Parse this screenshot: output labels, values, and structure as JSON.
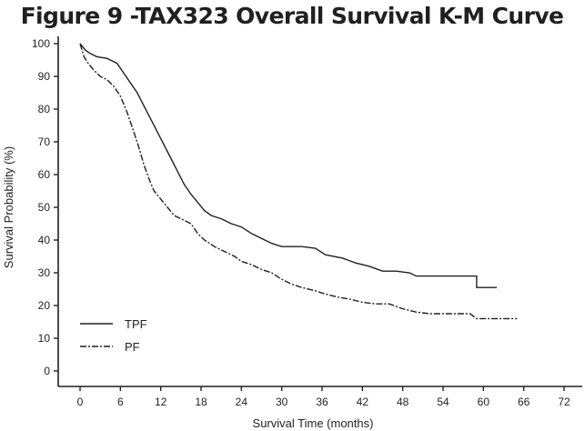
{
  "chart_data": {
    "type": "line",
    "title": "Figure 9 -TAX323 Overall Survival K-M Curve",
    "xlabel": "Survival Time (months)",
    "ylabel": "Survival Probability (%)",
    "xlim": [
      0,
      72
    ],
    "ylim": [
      0,
      100
    ],
    "xticks": [
      0,
      6,
      12,
      18,
      24,
      30,
      36,
      42,
      48,
      54,
      60,
      66,
      72
    ],
    "yticks": [
      0,
      10,
      20,
      30,
      40,
      50,
      60,
      70,
      80,
      90,
      100
    ],
    "grid": false,
    "legend_position": "bottom-left",
    "series": [
      {
        "name": "TPF",
        "line_style": "solid",
        "points": [
          [
            0,
            100
          ],
          [
            0.8,
            98
          ],
          [
            1.5,
            97
          ],
          [
            2.5,
            96
          ],
          [
            4,
            95.5
          ],
          [
            5.5,
            94
          ],
          [
            6.5,
            91
          ],
          [
            7.5,
            88
          ],
          [
            8.5,
            85
          ],
          [
            9.5,
            81
          ],
          [
            10.5,
            77
          ],
          [
            11.5,
            73
          ],
          [
            12.5,
            69
          ],
          [
            13.5,
            65
          ],
          [
            14.5,
            61
          ],
          [
            15.5,
            57
          ],
          [
            16.5,
            54
          ],
          [
            17.5,
            51.5
          ],
          [
            18.5,
            49
          ],
          [
            19.5,
            47.5
          ],
          [
            21,
            46.5
          ],
          [
            22.5,
            45
          ],
          [
            24,
            44
          ],
          [
            25.5,
            42
          ],
          [
            27,
            40.5
          ],
          [
            28.5,
            39
          ],
          [
            30,
            38
          ],
          [
            33,
            38
          ],
          [
            35,
            37.5
          ],
          [
            36.5,
            35.5
          ],
          [
            39,
            34.5
          ],
          [
            41,
            33
          ],
          [
            43,
            32
          ],
          [
            45,
            30.5
          ],
          [
            47,
            30.5
          ],
          [
            49,
            30
          ],
          [
            50,
            29
          ],
          [
            54,
            29
          ],
          [
            57,
            29
          ],
          [
            59,
            29
          ],
          [
            59,
            25.5
          ],
          [
            62,
            25.5
          ]
        ]
      },
      {
        "name": "PF",
        "line_style": "dash-dot",
        "points": [
          [
            0,
            100
          ],
          [
            0.6,
            96
          ],
          [
            1.2,
            94
          ],
          [
            2,
            92
          ],
          [
            3,
            90
          ],
          [
            4,
            89
          ],
          [
            5,
            87
          ],
          [
            6,
            84
          ],
          [
            7,
            79
          ],
          [
            8,
            73
          ],
          [
            8.8,
            68
          ],
          [
            9.5,
            63
          ],
          [
            10.3,
            58.5
          ],
          [
            11,
            55
          ],
          [
            12,
            52.5
          ],
          [
            13,
            50
          ],
          [
            14,
            47.5
          ],
          [
            15.5,
            46
          ],
          [
            16.5,
            45
          ],
          [
            17.5,
            42
          ],
          [
            18.5,
            40
          ],
          [
            20,
            38
          ],
          [
            21.5,
            36.5
          ],
          [
            23,
            35
          ],
          [
            24,
            33.5
          ],
          [
            25.5,
            32.5
          ],
          [
            27,
            31
          ],
          [
            28.5,
            30
          ],
          [
            30,
            28
          ],
          [
            31.5,
            26.5
          ],
          [
            33,
            25.5
          ],
          [
            35,
            24.5
          ],
          [
            36.5,
            23.5
          ],
          [
            38.5,
            22.5
          ],
          [
            40,
            22
          ],
          [
            42,
            21
          ],
          [
            44,
            20.5
          ],
          [
            46,
            20.5
          ],
          [
            48,
            19
          ],
          [
            50,
            18
          ],
          [
            52,
            17.5
          ],
          [
            55,
            17.5
          ],
          [
            58,
            17.5
          ],
          [
            59,
            16
          ],
          [
            65,
            16
          ]
        ]
      }
    ]
  }
}
